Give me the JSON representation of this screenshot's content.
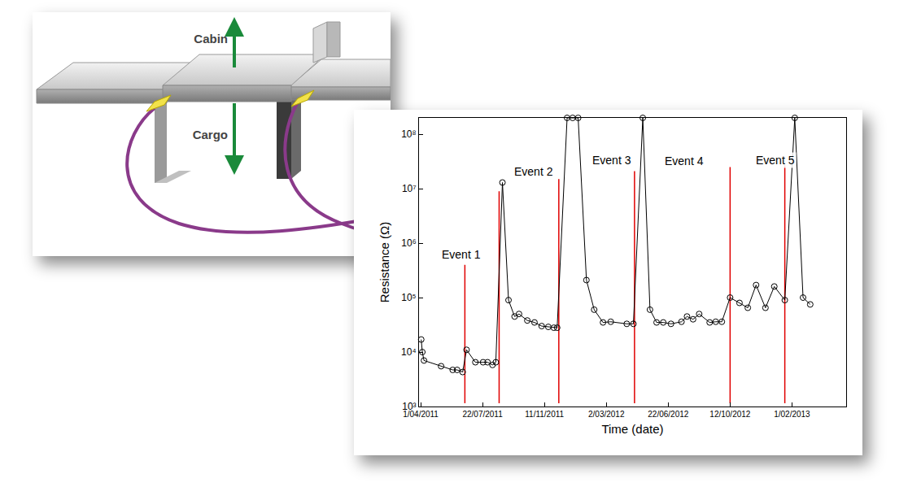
{
  "chart_data": {
    "type": "line",
    "x_label": "Time (date)",
    "y_label": "Resistance (Ω)",
    "log": "y",
    "grid": false,
    "color": "#000000",
    "marker": "circle-open",
    "line_style": "solid",
    "x": [
      "2011-04-02",
      "2011-04-04",
      "2011-04-07",
      "2011-05-08",
      "2011-05-29",
      "2011-06-06",
      "2011-06-16",
      "2011-06-23",
      "2011-07-09",
      "2011-07-23",
      "2011-07-31",
      "2011-08-09",
      "2011-08-15",
      "2011-08-27",
      "2011-09-07",
      "2011-09-18",
      "2011-09-26",
      "2011-10-11",
      "2011-10-24",
      "2011-11-06",
      "2011-11-18",
      "2011-11-28",
      "2011-12-04",
      "2011-12-22",
      "2012-01-01",
      "2012-01-11",
      "2012-01-26",
      "2012-02-09",
      "2012-02-25",
      "2012-03-10",
      "2012-04-08",
      "2012-04-20",
      "2012-05-07",
      "2012-05-20",
      "2012-06-01",
      "2012-06-13",
      "2012-06-27",
      "2012-07-16",
      "2012-07-26",
      "2012-08-06",
      "2012-08-17",
      "2012-09-05",
      "2012-09-16",
      "2012-09-27",
      "2012-10-12",
      "2012-10-29",
      "2012-11-13",
      "2012-11-28",
      "2012-12-15",
      "2012-12-31",
      "2013-01-19",
      "2013-02-06",
      "2013-02-21",
      "2013-03-06"
    ],
    "values": [
      17000,
      10000,
      7000,
      5500,
      4700,
      4700,
      4300,
      11000,
      6500,
      6500,
      6500,
      5800,
      6500,
      13000000,
      90000,
      45000,
      50000,
      38000,
      35000,
      30000,
      29000,
      28000,
      28000,
      200000000,
      200000000,
      200000000,
      210000,
      60000,
      35000,
      36000,
      33000,
      33000,
      200000000,
      60000,
      35000,
      35000,
      33000,
      36000,
      45000,
      40000,
      50000,
      35000,
      36000,
      36000,
      100000,
      80000,
      65000,
      170000,
      65000,
      160000,
      90000,
      200000000,
      100000,
      75000
    ],
    "xlim": [
      "2011-03-29",
      "2013-05-10"
    ],
    "ylim": [
      1000,
      200000000
    ],
    "xticks": [
      {
        "value": "2011-04-01",
        "label": "1/04/2011"
      },
      {
        "value": "2011-07-22",
        "label": "22/07/2011"
      },
      {
        "value": "2011-11-11",
        "label": "11/11/2011"
      },
      {
        "value": "2012-03-02",
        "label": "2/03/2012"
      },
      {
        "value": "2012-06-22",
        "label": "22/06/2012"
      },
      {
        "value": "2012-10-12",
        "label": "12/10/2012"
      },
      {
        "value": "2013-02-01",
        "label": "1/02/2013"
      }
    ],
    "yticks": [
      {
        "value": 1000,
        "label": "10³"
      },
      {
        "value": 10000,
        "label": "10⁴"
      },
      {
        "value": 100000,
        "label": "10⁵"
      },
      {
        "value": 1000000,
        "label": "10⁶"
      },
      {
        "value": 10000000,
        "label": "10⁷"
      },
      {
        "value": 100000000,
        "label": "10⁸"
      }
    ],
    "vlines": {
      "color": "#e00000",
      "x": [
        "2011-06-20",
        "2011-08-21",
        "2011-12-07",
        "2012-04-22",
        "2012-10-12",
        "2013-01-19"
      ],
      "y_from": [
        1150,
        1150,
        1150,
        1150,
        1150,
        1150
      ],
      "y_to": [
        400000,
        9000000,
        15000000,
        21000000,
        25000000,
        27000000
      ]
    },
    "annotations": [
      {
        "text": "Event 1",
        "x": "2011-06-13",
        "y": 630000
      },
      {
        "text": "Event 2",
        "x": "2011-10-23",
        "y": 21000000
      },
      {
        "text": "Event 3",
        "x": "2012-03-12",
        "y": 34000000
      },
      {
        "text": "Event 4",
        "x": "2012-07-21",
        "y": 32000000
      },
      {
        "text": "Event 5",
        "x": "2013-01-02",
        "y": 34000000
      }
    ]
  },
  "diagram": {
    "arrows": [
      {
        "label": "Cabin"
      },
      {
        "label": "Cargo"
      }
    ]
  }
}
